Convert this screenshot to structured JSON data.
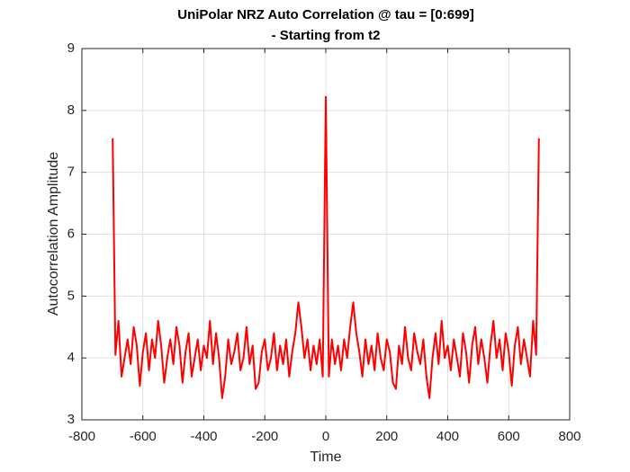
{
  "chart_data": {
    "type": "line",
    "title": "UniPolar NRZ Auto Correlation @ tau = [0:699]",
    "subtitle": "- Starting from t2",
    "x_label": "Time",
    "y_label": "Autocorrelation Amplitude",
    "color": "#ff0000",
    "grid": true,
    "xlim": [
      -800,
      800
    ],
    "ylim": [
      3,
      9
    ],
    "xticks": [
      -800,
      -600,
      -400,
      -200,
      0,
      200,
      400,
      600,
      800
    ],
    "yticks": [
      3,
      4,
      5,
      6,
      7,
      8,
      9
    ],
    "x": [
      -699,
      -690,
      -680,
      -670,
      -660,
      -650,
      -640,
      -630,
      -620,
      -610,
      -600,
      -590,
      -580,
      -570,
      -560,
      -550,
      -540,
      -530,
      -520,
      -510,
      -500,
      -490,
      -480,
      -470,
      -460,
      -450,
      -440,
      -430,
      -420,
      -410,
      -400,
      -390,
      -380,
      -370,
      -360,
      -350,
      -340,
      -330,
      -320,
      -310,
      -300,
      -290,
      -280,
      -270,
      -260,
      -250,
      -240,
      -230,
      -220,
      -210,
      -200,
      -190,
      -180,
      -170,
      -160,
      -150,
      -140,
      -130,
      -120,
      -110,
      -100,
      -90,
      -80,
      -70,
      -60,
      -50,
      -40,
      -30,
      -20,
      -10,
      0,
      10,
      20,
      30,
      40,
      50,
      60,
      70,
      80,
      90,
      100,
      110,
      120,
      130,
      140,
      150,
      160,
      170,
      180,
      190,
      200,
      210,
      220,
      230,
      240,
      250,
      260,
      270,
      280,
      290,
      300,
      310,
      320,
      330,
      340,
      350,
      360,
      370,
      380,
      390,
      400,
      410,
      420,
      430,
      440,
      450,
      460,
      470,
      480,
      490,
      500,
      510,
      520,
      530,
      540,
      550,
      560,
      570,
      580,
      590,
      600,
      610,
      620,
      630,
      640,
      650,
      660,
      670,
      680,
      690,
      699
    ],
    "values": [
      7.55,
      4.05,
      4.6,
      3.7,
      4.0,
      4.3,
      3.9,
      4.5,
      4.2,
      3.55,
      4.1,
      4.4,
      3.8,
      4.3,
      4.0,
      4.6,
      4.2,
      3.6,
      4.0,
      4.3,
      3.9,
      4.5,
      4.2,
      3.6,
      4.1,
      4.4,
      3.7,
      4.0,
      4.3,
      3.8,
      4.2,
      4.0,
      4.6,
      3.9,
      4.4,
      4.0,
      3.35,
      3.7,
      4.3,
      3.9,
      4.1,
      4.4,
      3.8,
      4.0,
      4.5,
      3.9,
      4.2,
      3.5,
      3.6,
      4.1,
      4.3,
      3.8,
      4.0,
      4.4,
      3.8,
      4.2,
      3.9,
      4.3,
      3.7,
      4.1,
      4.4,
      4.9,
      4.5,
      4.0,
      4.3,
      3.8,
      4.2,
      3.9,
      4.3,
      3.7,
      8.22,
      3.7,
      4.3,
      3.9,
      4.2,
      3.8,
      4.3,
      4.0,
      4.5,
      4.9,
      4.4,
      4.1,
      3.7,
      4.3,
      3.9,
      4.2,
      3.8,
      4.4,
      4.0,
      3.8,
      4.3,
      4.1,
      3.6,
      3.5,
      4.2,
      3.9,
      4.5,
      4.0,
      3.8,
      4.4,
      4.1,
      3.9,
      4.3,
      3.7,
      3.35,
      4.0,
      4.4,
      3.9,
      4.6,
      4.0,
      4.2,
      3.8,
      4.3,
      4.0,
      3.7,
      4.4,
      4.1,
      3.6,
      4.2,
      4.5,
      3.9,
      4.3,
      4.0,
      3.6,
      4.2,
      4.6,
      4.0,
      4.3,
      3.8,
      4.4,
      4.1,
      3.55,
      4.2,
      4.5,
      3.9,
      4.3,
      4.0,
      3.7,
      4.6,
      4.05,
      7.55
    ]
  }
}
